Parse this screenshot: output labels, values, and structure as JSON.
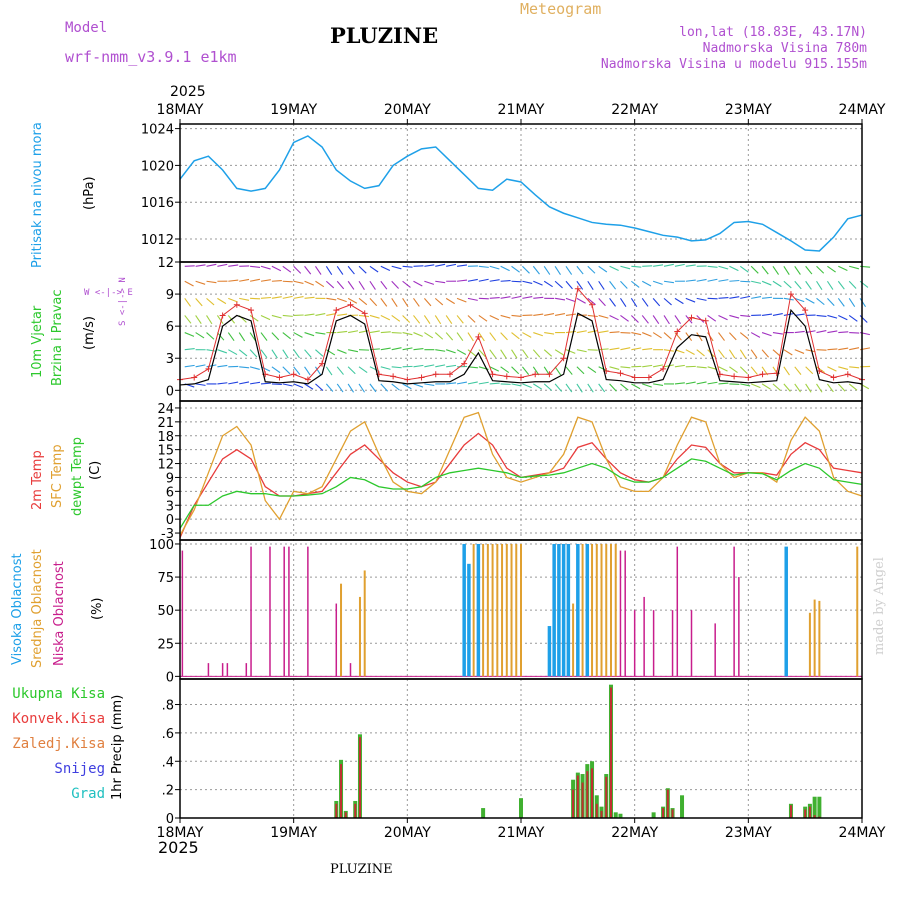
{
  "header": {
    "model_label": "Model",
    "model_name": "wrf-nmm_v3.9.1 e1km",
    "station": "PLUZINE",
    "product": "Meteogram",
    "coords": "lon,lat (18.83E, 43.17N)",
    "elevation": "Nadmorska Visina 780m",
    "model_elevation": "Nadmorska Visina u modelu 915.155m",
    "year": "2025",
    "footer_station": "PLUZINE",
    "credit": "made by Angel"
  },
  "colors": {
    "pressure": "#1ea0e8",
    "wind_speed": "#000000",
    "gust": "#e03030",
    "t2m": "#e83c3c",
    "sfc_temp": "#e0a030",
    "dewpoint": "#2cc82c",
    "high_cloud": "#1ea0e8",
    "mid_cloud": "#e0a030",
    "low_cloud": "#c81e8c",
    "total_precip": "#40b030",
    "conv_precip": "#c03030"
  },
  "x_axis": {
    "ticks": [
      "18MAY",
      "19MAY",
      "20MAY",
      "21MAY",
      "22MAY",
      "23MAY",
      "24MAY"
    ]
  },
  "panels": {
    "pressure": {
      "labels": [
        "Pritisak na nivou mora",
        "(hPa)"
      ]
    },
    "wind": {
      "labels": [
        "10m Vjetar",
        "Brzina i Pravac",
        "(m/s)"
      ],
      "compass": "W <-|-> E",
      "compass_v": "S <-|-> N"
    },
    "temp": {
      "labels": [
        "2m Temp",
        "SFC Temp",
        "dewpt Temp",
        "(C)"
      ]
    },
    "cloud": {
      "labels": [
        "Visoka Oblacnost",
        "Srednja Oblacnost",
        "Niska Oblacnost",
        "(%)"
      ]
    },
    "precip": {
      "labels": [
        "Ukupna Kisa",
        "Konvek.Kisa",
        "Zaledj.Kisa",
        "Snijeg",
        "Grad",
        "1hr Precip (mm)"
      ]
    }
  },
  "chart_data": [
    {
      "type": "line",
      "name": "pressure",
      "ylabel": "(hPa)",
      "ylim": [
        1009.5,
        1024.5
      ],
      "yticks": [
        1012,
        1016,
        1020,
        1024
      ],
      "x_hours": [
        0,
        3,
        6,
        9,
        12,
        15,
        18,
        21,
        24,
        27,
        30,
        33,
        36,
        39,
        42,
        45,
        48,
        51,
        54,
        57,
        60,
        63,
        66,
        69,
        72,
        75,
        78,
        81,
        84,
        87,
        90,
        93,
        96,
        99,
        102,
        105,
        108,
        111,
        114,
        117,
        120,
        123,
        126,
        129,
        132,
        135,
        138,
        141,
        144
      ],
      "values": [
        1018.5,
        1020.5,
        1021,
        1019.5,
        1017.5,
        1017.2,
        1017.5,
        1019.5,
        1022.5,
        1023.2,
        1022,
        1019.5,
        1018.3,
        1017.5,
        1017.8,
        1020,
        1021,
        1021.8,
        1022,
        1020.5,
        1019,
        1017.5,
        1017.3,
        1018.5,
        1018.2,
        1016.8,
        1015.5,
        1014.8,
        1014.3,
        1013.8,
        1013.6,
        1013.5,
        1013.2,
        1012.8,
        1012.4,
        1012.2,
        1011.8,
        1011.9,
        1012.6,
        1013.8,
        1013.9,
        1013.6,
        1012.7,
        1011.8,
        1010.8,
        1010.7,
        1012.2,
        1014.2,
        1014.6
      ]
    },
    {
      "type": "line",
      "name": "wind",
      "ylabel": "(m/s)",
      "ylim": [
        -1,
        12
      ],
      "yticks": [
        0,
        3,
        6,
        9,
        12
      ],
      "x_hours": [
        0,
        3,
        6,
        9,
        12,
        15,
        18,
        21,
        24,
        27,
        30,
        33,
        36,
        39,
        42,
        45,
        48,
        51,
        54,
        57,
        60,
        63,
        66,
        69,
        72,
        75,
        78,
        81,
        84,
        87,
        90,
        93,
        96,
        99,
        102,
        105,
        108,
        111,
        114,
        117,
        120,
        123,
        126,
        129,
        132,
        135,
        138,
        141,
        144
      ],
      "series": [
        {
          "name": "speed",
          "values": [
            0.5,
            0.6,
            1,
            6,
            7,
            6.5,
            0.8,
            0.7,
            0.8,
            0.6,
            1.5,
            6.5,
            7,
            6.2,
            0.9,
            0.8,
            0.6,
            0.7,
            0.8,
            0.8,
            1.5,
            3.5,
            0.9,
            0.8,
            0.7,
            0.8,
            0.8,
            1.5,
            7.2,
            6.5,
            1,
            0.9,
            0.7,
            0.7,
            1,
            4,
            5.2,
            5,
            0.9,
            0.8,
            0.7,
            0.8,
            0.9,
            7.5,
            6,
            1,
            0.7,
            0.8,
            0.6
          ]
        },
        {
          "name": "gust",
          "values": [
            1,
            1.2,
            2,
            7,
            8,
            7.5,
            1.5,
            1.2,
            1.5,
            1,
            2.5,
            7.5,
            8,
            7.2,
            1.5,
            1.3,
            1,
            1.2,
            1.5,
            1.5,
            2.5,
            5,
            1.5,
            1.3,
            1.2,
            1.5,
            1.5,
            3,
            9.5,
            8,
            1.8,
            1.6,
            1.2,
            1.2,
            2,
            5.5,
            6.8,
            6.5,
            1.5,
            1.3,
            1.2,
            1.5,
            1.6,
            9,
            7.5,
            1.8,
            1.2,
            1.5,
            1
          ]
        }
      ]
    },
    {
      "type": "line",
      "name": "temperature",
      "ylabel": "(C)",
      "ylim": [
        -4.5,
        25.5
      ],
      "yticks": [
        -3,
        0,
        3,
        6,
        9,
        12,
        15,
        18,
        21,
        24
      ],
      "x_hours": [
        0,
        3,
        6,
        9,
        12,
        15,
        18,
        21,
        24,
        27,
        30,
        33,
        36,
        39,
        42,
        45,
        48,
        51,
        54,
        57,
        60,
        63,
        66,
        69,
        72,
        75,
        78,
        81,
        84,
        87,
        90,
        93,
        96,
        99,
        102,
        105,
        108,
        111,
        114,
        117,
        120,
        123,
        126,
        129,
        132,
        135,
        138,
        141,
        144
      ],
      "series": [
        {
          "name": "t2m",
          "values": [
            -4,
            3,
            8,
            13,
            15,
            13,
            7,
            5,
            5,
            5.5,
            6,
            10,
            14,
            16,
            13,
            10,
            8,
            7,
            8,
            12,
            16,
            18.5,
            16,
            11,
            9,
            9.5,
            10,
            11,
            15.5,
            16.5,
            13,
            10,
            8.5,
            8,
            9,
            13,
            16,
            15.5,
            12,
            10,
            10,
            10,
            9.5,
            14,
            16.5,
            15,
            11,
            10.5,
            10
          ]
        },
        {
          "name": "sfc_temp",
          "values": [
            -3.5,
            2,
            10,
            18,
            20,
            16,
            4,
            0,
            6,
            5.5,
            7,
            13,
            19,
            21,
            14,
            8,
            6,
            5.5,
            8,
            15,
            22,
            23,
            14,
            9,
            8,
            9,
            10,
            14,
            22,
            21,
            13,
            7,
            6,
            6,
            9,
            16,
            22,
            21,
            12,
            9,
            10,
            10,
            8,
            17,
            22,
            19,
            9,
            6,
            5
          ]
        },
        {
          "name": "dewpoint",
          "values": [
            -2,
            3,
            3,
            5,
            6,
            5.5,
            5.5,
            5,
            5,
            5.2,
            5.5,
            7,
            9,
            8.5,
            7,
            6.5,
            6.5,
            7,
            9,
            10,
            10.5,
            11,
            10.5,
            10,
            9,
            9.3,
            9.5,
            10,
            11,
            12,
            11,
            9,
            8,
            8,
            9,
            11,
            13,
            12.5,
            11,
            9.5,
            10,
            9.8,
            8.5,
            10.5,
            12,
            11,
            8.5,
            8,
            7.5
          ]
        }
      ]
    },
    {
      "type": "bar",
      "name": "cloud_cover",
      "ylabel": "(%)",
      "ylim": [
        -2,
        103
      ],
      "yticks": [
        0,
        25,
        50,
        75,
        100
      ],
      "bars": [
        {
          "series": "low",
          "hour": 0.5,
          "value": 95
        },
        {
          "series": "low",
          "hour": 6,
          "value": 10
        },
        {
          "series": "low",
          "hour": 9,
          "value": 10
        },
        {
          "series": "low",
          "hour": 10,
          "value": 10
        },
        {
          "series": "low",
          "hour": 14,
          "value": 10
        },
        {
          "series": "low",
          "hour": 15,
          "value": 98
        },
        {
          "series": "low",
          "hour": 19,
          "value": 98
        },
        {
          "series": "low",
          "hour": 22,
          "value": 98
        },
        {
          "series": "low",
          "hour": 23,
          "value": 98
        },
        {
          "series": "low",
          "hour": 27,
          "value": 98
        },
        {
          "series": "low",
          "hour": 33,
          "value": 55
        },
        {
          "series": "mid",
          "hour": 34,
          "value": 70
        },
        {
          "series": "low",
          "hour": 36,
          "value": 10
        },
        {
          "series": "mid",
          "hour": 38,
          "value": 60
        },
        {
          "series": "mid",
          "hour": 39,
          "value": 80
        },
        {
          "series": "high",
          "hour": 60,
          "value": 100
        },
        {
          "series": "high",
          "hour": 61,
          "value": 85
        },
        {
          "series": "mid",
          "hour": 62,
          "value": 100
        },
        {
          "series": "high",
          "hour": 63,
          "value": 100
        },
        {
          "series": "mid",
          "hour": 64,
          "value": 100
        },
        {
          "series": "mid",
          "hour": 65,
          "value": 100
        },
        {
          "series": "mid",
          "hour": 66,
          "value": 100
        },
        {
          "series": "mid",
          "hour": 67,
          "value": 100
        },
        {
          "series": "mid",
          "hour": 68,
          "value": 100
        },
        {
          "series": "mid",
          "hour": 69,
          "value": 100
        },
        {
          "series": "mid",
          "hour": 70,
          "value": 100
        },
        {
          "series": "mid",
          "hour": 71,
          "value": 100
        },
        {
          "series": "mid",
          "hour": 72,
          "value": 100
        },
        {
          "series": "high",
          "hour": 78,
          "value": 38
        },
        {
          "series": "high",
          "hour": 79,
          "value": 100
        },
        {
          "series": "high",
          "hour": 80,
          "value": 100
        },
        {
          "series": "high",
          "hour": 81,
          "value": 100
        },
        {
          "series": "high",
          "hour": 82,
          "value": 100
        },
        {
          "series": "mid",
          "hour": 83,
          "value": 55
        },
        {
          "series": "high",
          "hour": 84,
          "value": 100
        },
        {
          "series": "mid",
          "hour": 85,
          "value": 100
        },
        {
          "series": "high",
          "hour": 86,
          "value": 100
        },
        {
          "series": "mid",
          "hour": 87,
          "value": 100
        },
        {
          "series": "mid",
          "hour": 88,
          "value": 100
        },
        {
          "series": "mid",
          "hour": 89,
          "value": 100
        },
        {
          "series": "mid",
          "hour": 90,
          "value": 100
        },
        {
          "series": "mid",
          "hour": 91,
          "value": 100
        },
        {
          "series": "mid",
          "hour": 92,
          "value": 100
        },
        {
          "series": "low",
          "hour": 93,
          "value": 95
        },
        {
          "series": "low",
          "hour": 94,
          "value": 95
        },
        {
          "series": "low",
          "hour": 96,
          "value": 50
        },
        {
          "series": "low",
          "hour": 98,
          "value": 60
        },
        {
          "series": "low",
          "hour": 100,
          "value": 50
        },
        {
          "series": "low",
          "hour": 104,
          "value": 50
        },
        {
          "series": "low",
          "hour": 105,
          "value": 98
        },
        {
          "series": "low",
          "hour": 108,
          "value": 50
        },
        {
          "series": "low",
          "hour": 113,
          "value": 40
        },
        {
          "series": "low",
          "hour": 117,
          "value": 98
        },
        {
          "series": "low",
          "hour": 118,
          "value": 75
        },
        {
          "series": "high",
          "hour": 128,
          "value": 98
        },
        {
          "series": "mid",
          "hour": 133,
          "value": 48
        },
        {
          "series": "mid",
          "hour": 134,
          "value": 58
        },
        {
          "series": "mid",
          "hour": 135,
          "value": 57
        },
        {
          "series": "mid",
          "hour": 143,
          "value": 98
        }
      ]
    },
    {
      "type": "bar",
      "name": "precipitation",
      "ylabel": "1hr Precip (mm)",
      "ylim": [
        0,
        0.98
      ],
      "yticks": [
        0,
        0.2,
        0.4,
        0.6,
        0.8
      ],
      "bars": [
        {
          "hour": 33,
          "total": 0.12,
          "conv": 0.1
        },
        {
          "hour": 34,
          "total": 0.41,
          "conv": 0.38
        },
        {
          "hour": 35,
          "total": 0.05,
          "conv": 0.04
        },
        {
          "hour": 37,
          "total": 0.12,
          "conv": 0.1
        },
        {
          "hour": 38,
          "total": 0.59,
          "conv": 0.57
        },
        {
          "hour": 64,
          "total": 0.07,
          "conv": 0
        },
        {
          "hour": 72,
          "total": 0.14,
          "conv": 0
        },
        {
          "hour": 83,
          "total": 0.27,
          "conv": 0.2
        },
        {
          "hour": 84,
          "total": 0.32,
          "conv": 0.3
        },
        {
          "hour": 85,
          "total": 0.31,
          "conv": 0.25
        },
        {
          "hour": 86,
          "total": 0.38,
          "conv": 0.33
        },
        {
          "hour": 87,
          "total": 0.4,
          "conv": 0.35
        },
        {
          "hour": 88,
          "total": 0.16,
          "conv": 0.1
        },
        {
          "hour": 89,
          "total": 0.08,
          "conv": 0.05
        },
        {
          "hour": 90,
          "total": 0.31,
          "conv": 0.29
        },
        {
          "hour": 91,
          "total": 0.94,
          "conv": 0.92
        },
        {
          "hour": 92,
          "total": 0.04,
          "conv": 0
        },
        {
          "hour": 93,
          "total": 0.03,
          "conv": 0
        },
        {
          "hour": 100,
          "total": 0.04,
          "conv": 0
        },
        {
          "hour": 102,
          "total": 0.08,
          "conv": 0.07
        },
        {
          "hour": 103,
          "total": 0.21,
          "conv": 0.2
        },
        {
          "hour": 104,
          "total": 0.07,
          "conv": 0.06
        },
        {
          "hour": 106,
          "total": 0.16,
          "conv": 0
        },
        {
          "hour": 129,
          "total": 0.1,
          "conv": 0.09
        },
        {
          "hour": 132,
          "total": 0.08,
          "conv": 0.06
        },
        {
          "hour": 133,
          "total": 0.1,
          "conv": 0.08
        },
        {
          "hour": 134,
          "total": 0.15,
          "conv": 0.02
        },
        {
          "hour": 135,
          "total": 0.15,
          "conv": 0.01
        }
      ]
    }
  ]
}
